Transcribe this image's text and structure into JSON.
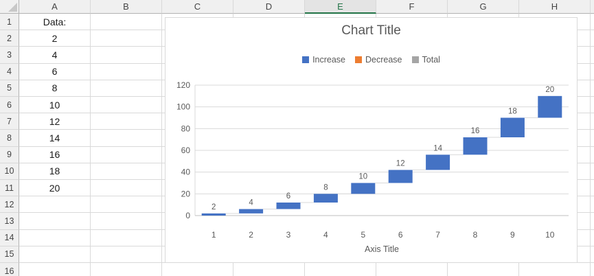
{
  "spreadsheet": {
    "corner_label": "",
    "column_headers": [
      "A",
      "B",
      "C",
      "D",
      "E",
      "F",
      "G",
      "H",
      ""
    ],
    "selected_column": "E",
    "row_headers": [
      "1",
      "2",
      "3",
      "4",
      "5",
      "6",
      "7",
      "8",
      "9",
      "10",
      "11",
      "12",
      "13",
      "14",
      "15",
      "16"
    ],
    "cell_values": {
      "A1": "Data:",
      "A2": "2",
      "A3": "4",
      "A4": "6",
      "A5": "8",
      "A6": "10",
      "A7": "12",
      "A8": "14",
      "A9": "16",
      "A10": "18",
      "A11": "20"
    }
  },
  "colors": {
    "increase": "#4472C4",
    "decrease": "#ED7D31",
    "total": "#A5A5A5",
    "chart_text": "#595959",
    "chart_gridline": "#D9D9D9",
    "chart_axis_line": "#BFBFBF",
    "selected_header_green": "#217346"
  },
  "chart_data": {
    "type": "bar",
    "subtype": "waterfall",
    "title": "Chart Title",
    "xlabel": "Axis Title",
    "ylabel": "",
    "legend_position": "top",
    "legend": [
      {
        "label": "Increase",
        "color": "#4472C4"
      },
      {
        "label": "Decrease",
        "color": "#ED7D31"
      },
      {
        "label": "Total",
        "color": "#A5A5A5"
      }
    ],
    "categories": [
      "1",
      "2",
      "3",
      "4",
      "5",
      "6",
      "7",
      "8",
      "9",
      "10"
    ],
    "values": [
      2,
      4,
      6,
      8,
      10,
      12,
      14,
      16,
      18,
      20
    ],
    "cumulative": [
      2,
      6,
      12,
      20,
      30,
      42,
      56,
      72,
      90,
      110
    ],
    "data_labels": [
      "2",
      "4",
      "6",
      "8",
      "10",
      "12",
      "14",
      "16",
      "18",
      "20"
    ],
    "series_shown": "Increase",
    "ylim": [
      0,
      120
    ],
    "yticks": [
      0,
      20,
      40,
      60,
      80,
      100,
      120
    ],
    "grid": true
  }
}
